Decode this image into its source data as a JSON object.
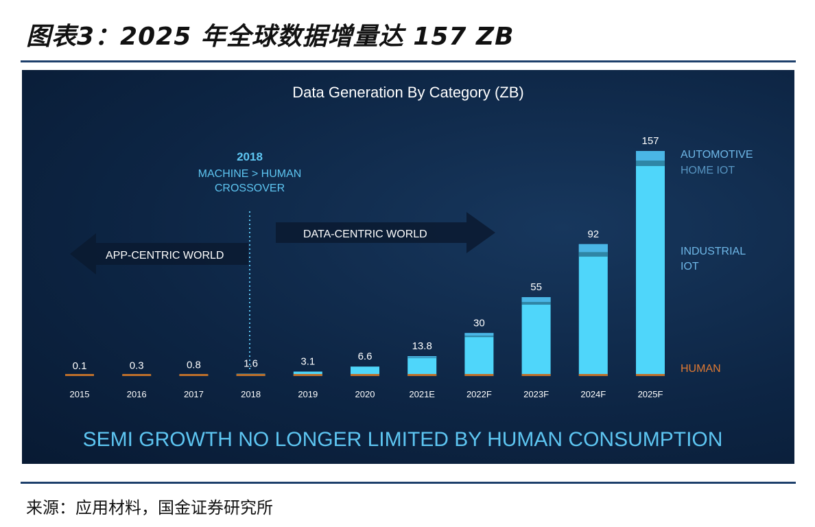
{
  "figure_title": "图表3：2025 年全球数据增量达 157 ZB",
  "source_note": "来源：应用材料，国金证券研究所",
  "chart_data": {
    "type": "bar",
    "title": "Data Generation By Category (ZB)",
    "categories": [
      "2015",
      "2016",
      "2017",
      "2018",
      "2019",
      "2020",
      "2021E",
      "2022F",
      "2023F",
      "2024F",
      "2025F"
    ],
    "values": [
      0.1,
      0.3,
      0.8,
      1.6,
      3.1,
      6.6,
      13.8,
      30,
      55,
      92,
      157
    ],
    "data_labels": [
      "0.1",
      "0.3",
      "0.8",
      "1.6",
      "3.1",
      "6.6",
      "13.8",
      "30",
      "55",
      "92",
      "157"
    ],
    "legend": {
      "automotive": "AUTOMOTIVE",
      "home_iot": "HOME IOT",
      "industrial_iot_line1": "INDUSTRIAL",
      "industrial_iot_line2": "IOT",
      "human": "HUMAN"
    },
    "annotations": {
      "crossover_year": "2018",
      "crossover_line1": "MACHINE > HUMAN",
      "crossover_line2": "CROSSOVER",
      "app_centric": "APP-CENTRIC WORLD",
      "data_centric": "DATA-CENTRIC WORLD"
    },
    "banner": "SEMI GROWTH NO LONGER LIMITED BY HUMAN CONSUMPTION",
    "ylim": [
      0,
      157
    ],
    "grid": false,
    "legend_placement": "right",
    "colors": {
      "industrial": "#4fd6fa",
      "home_band": "#2f86a6",
      "automotive": "#4ab6e6",
      "human": "#c0702a",
      "human_label": "#e07a33",
      "legend_text": "#6fb8e8"
    }
  }
}
